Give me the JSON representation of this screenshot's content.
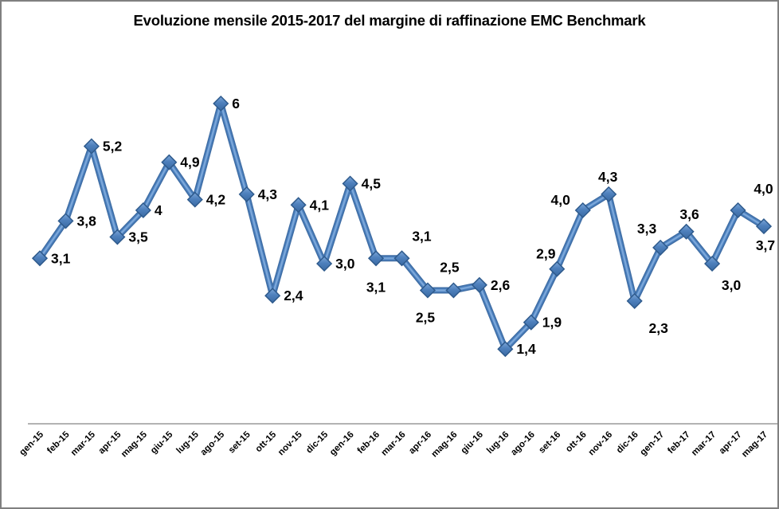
{
  "chart_data": {
    "type": "line",
    "title": "Evoluzione mensile 2015-2017 del margine di raffinazione EMC Benchmark",
    "categories": [
      "gen-15",
      "feb-15",
      "mar-15",
      "apr-15",
      "mag-15",
      "giu-15",
      "lug-15",
      "ago-15",
      "set-15",
      "ott-15",
      "nov-15",
      "dic-15",
      "gen-16",
      "feb-16",
      "mar-16",
      "apr-16",
      "mag-16",
      "giu-16",
      "lug-16",
      "ago-16",
      "set-16",
      "ott-16",
      "nov-16",
      "dic-16",
      "gen-17",
      "feb-17",
      "mar-17",
      "apr-17",
      "mag-17"
    ],
    "values": [
      3.1,
      3.8,
      5.2,
      3.5,
      4,
      4.9,
      4.2,
      6,
      4.3,
      2.4,
      4.1,
      3.0,
      4.5,
      3.1,
      3.1,
      2.5,
      2.5,
      2.6,
      1.4,
      1.9,
      2.9,
      4.0,
      4.3,
      2.3,
      3.3,
      3.6,
      3.0,
      4.0,
      3.7
    ],
    "point_labels": [
      "3,1",
      "3,8",
      "5,2",
      "3,5",
      "4",
      "4,9",
      "4,2",
      "6",
      "4,3",
      "2,4",
      "4,1",
      "3,0",
      "4,5",
      "3,1",
      "3,1",
      "2,5",
      "2,5",
      "2,6",
      "1,4",
      "1,9",
      "2,9",
      "4,0",
      "4,3",
      "2,3",
      "3,3",
      "3,6",
      "3,0",
      "4,0",
      "3,7"
    ],
    "xlabel": "",
    "ylabel": "",
    "ylim": [
      0,
      6.5
    ],
    "grid": false,
    "legend": "none",
    "marker": "diamond",
    "decimal_separator": ",",
    "colors": {
      "series_line": "#4A7EBB",
      "series_line_dark": "#3E6CA3",
      "series_line_light": "#7BA7DA",
      "marker_fill_top": "#7CA6D8",
      "marker_fill_bottom": "#3A6AA3",
      "marker_stroke": "#2E5A8C",
      "axis_line": "#9A9A9A",
      "label_text": "#000000",
      "frame_border": "#808080"
    }
  }
}
